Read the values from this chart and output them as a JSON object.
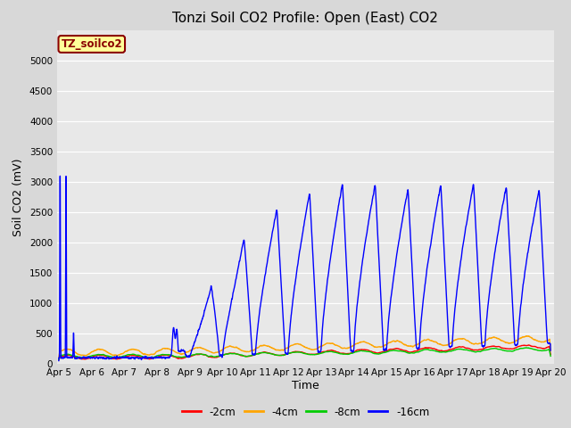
{
  "title": "Tonzi Soil CO2 Profile: Open (East) CO2",
  "ylabel": "Soil CO2 (mV)",
  "xlabel": "Time",
  "annotation": "TZ_soilco2",
  "legend_labels": [
    "-2cm",
    "-4cm",
    "-8cm",
    "-16cm"
  ],
  "legend_colors": [
    "#ff0000",
    "#ffa500",
    "#00cc00",
    "#0000ff"
  ],
  "ylim": [
    0,
    5500
  ],
  "yticks": [
    0,
    500,
    1000,
    1500,
    2000,
    2500,
    3000,
    3500,
    4000,
    4500,
    5000
  ],
  "title_fontsize": 11,
  "axis_label_fontsize": 9,
  "tick_fontsize": 7.5,
  "line_width": 1.0,
  "n_points": 4320,
  "start_day": 5,
  "end_day": 20,
  "x_tick_days": [
    5,
    6,
    7,
    8,
    9,
    10,
    11,
    12,
    13,
    14,
    15,
    16,
    17,
    18,
    19,
    20
  ]
}
